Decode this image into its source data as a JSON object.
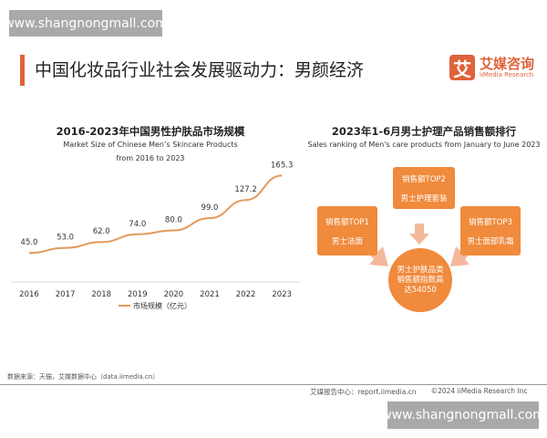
{
  "watermark": "www.shangnongmall.com",
  "header": {
    "title": "中国化妆品行业社会发展驱动力：男颜经济",
    "logo_mark": "艾",
    "logo_cn": "艾媒咨询",
    "logo_en": "iiMedia Research"
  },
  "chart_data": {
    "type": "line",
    "title": "2016-2023年中国男性护肤品市场规模",
    "subtitle_line1": "Market Size of Chinese Men’s Skincare Products",
    "subtitle_line2": "from 2016 to 2023",
    "categories": [
      "2016",
      "2017",
      "2018",
      "2019",
      "2020",
      "2021",
      "2022",
      "2023"
    ],
    "series": [
      {
        "name": "市场规模（亿元）",
        "values": [
          45.0,
          53.0,
          62.0,
          74.0,
          80.0,
          99.0,
          127.2,
          165.3
        ],
        "color": "#e39a5b"
      }
    ],
    "value_labels": [
      "45.0",
      "53.0",
      "62.0",
      "74.0",
      "80.0",
      "99.0",
      "127.2",
      "165.3"
    ],
    "ylim": [
      0,
      170
    ],
    "grid": false,
    "legend_position": "bottom"
  },
  "ranking": {
    "title": "2023年1-6月男士护理产品销售额排行",
    "subtitle": "Sales ranking of Men's care products from January to June 2023",
    "top1": {
      "rank": "销售额TOP1",
      "name": "男士洁面"
    },
    "top2": {
      "rank": "销售额TOP2",
      "name": "男士护理套装"
    },
    "top3": {
      "rank": "销售额TOP3",
      "name": "男士面部乳霜"
    },
    "center": "男士护肤品类销售额指数高达54050",
    "accent": "#f08a3c"
  },
  "footer": {
    "source": "数据来源：天猫，艾媒数据中心（data.iimedia.cn）",
    "report": "艾媒报告中心：report.iimedia.cn",
    "copyright": "©2024 iiMedia Research Inc"
  }
}
